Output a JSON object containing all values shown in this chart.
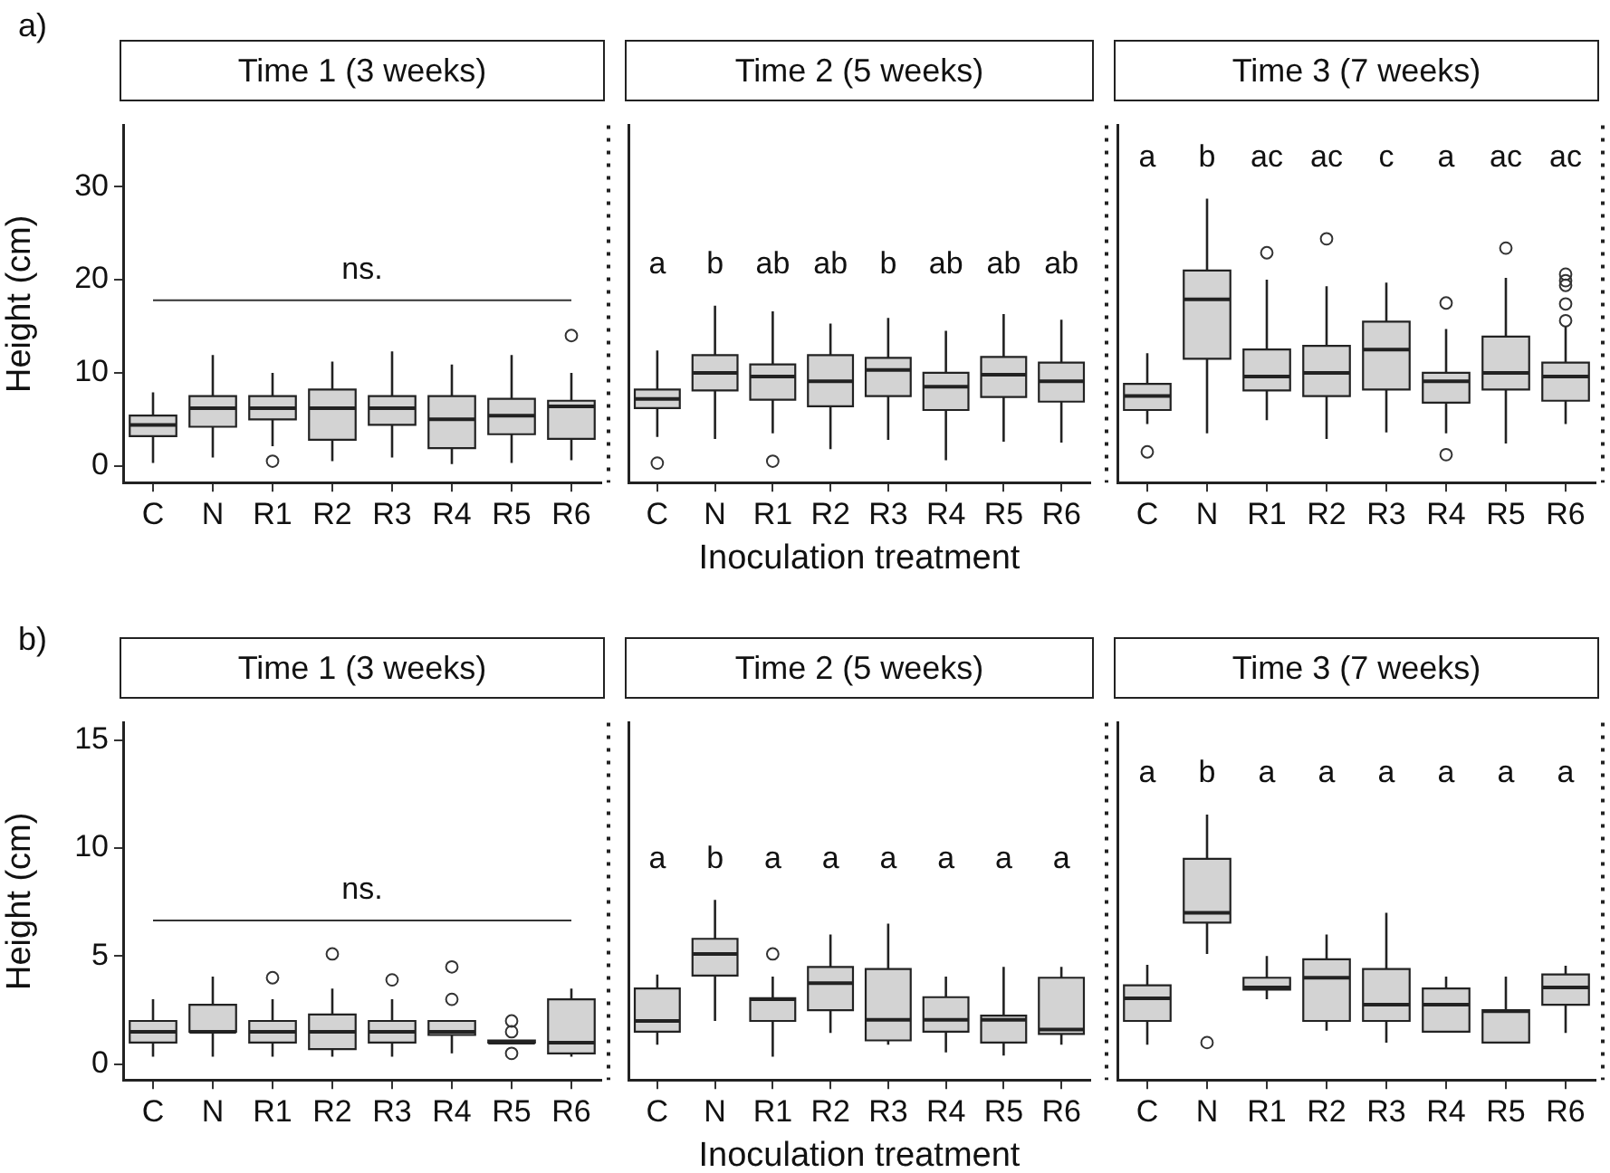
{
  "chart_data": [
    {
      "type": "box",
      "title": "Time 1 (3 weeks)",
      "ylabel": "Height (cm)",
      "categories": [
        "C",
        "N",
        "R1",
        "R2",
        "R3",
        "R4",
        "R5",
        "R6"
      ],
      "ylim": [
        -1.8,
        36.6
      ],
      "yticks": [
        0,
        10,
        20,
        30
      ],
      "marker": "circle",
      "series": [
        {
          "color": "#d3d3d3",
          "boxes": [
            {
              "low": 0.3,
              "q1": 3.2,
              "median": 4.4,
              "q3": 5.4,
              "high": 7.9
            },
            {
              "low": 0.9,
              "q1": 4.2,
              "median": 6.2,
              "q3": 7.5,
              "high": 11.9
            },
            {
              "low": 2.1,
              "q1": 5.0,
              "median": 6.2,
              "q3": 7.5,
              "high": 10,
              "outliers": [
                0.5
              ]
            },
            {
              "low": 0.5,
              "q1": 2.8,
              "median": 6.2,
              "q3": 8.2,
              "high": 11.2
            },
            {
              "low": 0.9,
              "q1": 4.4,
              "median": 6.2,
              "q3": 7.5,
              "high": 12.3
            },
            {
              "low": 0.2,
              "q1": 1.9,
              "median": 5.0,
              "q3": 7.5,
              "high": 10.9
            },
            {
              "low": 0.3,
              "q1": 3.4,
              "median": 5.4,
              "q3": 7.2,
              "high": 11.9
            },
            {
              "low": 0.6,
              "q1": 2.9,
              "median": 6.4,
              "q3": 7.0,
              "high": 10,
              "outliers": [
                14
              ]
            }
          ]
        }
      ],
      "ref_lines": [
        {
          "axis": "y",
          "value": 17.8,
          "label": "ns."
        }
      ],
      "annotations": [
        "a)"
      ]
    },
    {
      "type": "box",
      "title": "Time 2 (5 weeks)",
      "xlabel": "Inoculation treatment",
      "categories": [
        "C",
        "N",
        "R1",
        "R2",
        "R3",
        "R4",
        "R5",
        "R6"
      ],
      "ylim": [
        -1.8,
        36.6
      ],
      "tick_labels": "x",
      "marker": "circle",
      "series": [
        {
          "color": "#d3d3d3",
          "boxes": [
            {
              "low": 3.1,
              "q1": 6.2,
              "median": 7.2,
              "q3": 8.2,
              "high": 12.4,
              "outliers": [
                0.3
              ]
            },
            {
              "low": 2.9,
              "q1": 8.1,
              "median": 10.0,
              "q3": 11.9,
              "high": 17.2
            },
            {
              "low": 3.5,
              "q1": 7.1,
              "median": 9.6,
              "q3": 10.9,
              "high": 16.6,
              "outliers": [
                0.5
              ]
            },
            {
              "low": 1.8,
              "q1": 6.4,
              "median": 9.1,
              "q3": 11.9,
              "high": 15.3
            },
            {
              "low": 2.8,
              "q1": 7.5,
              "median": 10.3,
              "q3": 11.6,
              "high": 15.9
            },
            {
              "low": 0.6,
              "q1": 6.0,
              "median": 8.5,
              "q3": 10.0,
              "high": 14.5
            },
            {
              "low": 2.6,
              "q1": 7.4,
              "median": 9.8,
              "q3": 11.7,
              "high": 16.3
            },
            {
              "low": 2.5,
              "q1": 6.9,
              "median": 9.1,
              "q3": 11.1,
              "high": 15.7
            }
          ]
        }
      ],
      "annotations": [
        "a",
        "b",
        "ab",
        "ab",
        "b",
        "ab",
        "ab",
        "ab"
      ]
    },
    {
      "type": "box",
      "title": "Time 3 (7 weeks)",
      "categories": [
        "C",
        "N",
        "R1",
        "R2",
        "R3",
        "R4",
        "R5",
        "R6"
      ],
      "ylim": [
        -1.8,
        36.6
      ],
      "tick_labels": "x",
      "marker": "circle",
      "series": [
        {
          "color": "#d3d3d3",
          "boxes": [
            {
              "low": 4.5,
              "q1": 6.0,
              "median": 7.5,
              "q3": 8.8,
              "high": 12.1,
              "outliers": [
                1.5
              ]
            },
            {
              "low": 3.5,
              "q1": 11.5,
              "median": 17.9,
              "q3": 21.0,
              "high": 28.7
            },
            {
              "low": 4.9,
              "q1": 8.1,
              "median": 9.6,
              "q3": 12.5,
              "high": 20.0,
              "outliers": [
                22.9
              ]
            },
            {
              "low": 2.9,
              "q1": 7.5,
              "median": 10.0,
              "q3": 12.9,
              "high": 19.3,
              "outliers": [
                24.4
              ]
            },
            {
              "low": 3.6,
              "q1": 8.2,
              "median": 12.5,
              "q3": 15.5,
              "high": 19.7
            },
            {
              "low": 3.5,
              "q1": 6.8,
              "median": 9.1,
              "q3": 10.0,
              "high": 14.7,
              "outliers": [
                1.2,
                17.5
              ]
            },
            {
              "low": 2.4,
              "q1": 8.2,
              "median": 10.0,
              "q3": 13.9,
              "high": 20.2,
              "outliers": [
                23.4
              ]
            },
            {
              "low": 4.5,
              "q1": 7.0,
              "median": 9.6,
              "q3": 11.1,
              "high": 15.0,
              "outliers": [
                15.6,
                17.4,
                19.4,
                19.9,
                20.6
              ]
            }
          ]
        }
      ],
      "annotations": [
        "a",
        "b",
        "ac",
        "ac",
        "c",
        "a",
        "ac",
        "ac"
      ]
    },
    {
      "type": "box",
      "title": "Time 1 (3 weeks)",
      "ylabel": "Height (cm)",
      "categories": [
        "C",
        "N",
        "R1",
        "R2",
        "R3",
        "R4",
        "R5",
        "R6"
      ],
      "ylim": [
        -0.73,
        15.8
      ],
      "yticks": [
        0,
        5,
        10,
        15
      ],
      "marker": "circle",
      "series": [
        {
          "color": "#d3d3d3",
          "boxes": [
            {
              "low": 0.35,
              "q1": 1.0,
              "median": 1.5,
              "q3": 2.0,
              "high": 3.0
            },
            {
              "low": 0.35,
              "q1": 1.5,
              "median": 1.5,
              "q3": 2.75,
              "high": 4.05
            },
            {
              "low": 0.35,
              "q1": 1.0,
              "median": 1.5,
              "q3": 2.0,
              "high": 3.0,
              "outliers": [
                4.0
              ]
            },
            {
              "low": 0.35,
              "q1": 0.7,
              "median": 1.5,
              "q3": 2.3,
              "high": 3.5,
              "outliers": [
                5.1
              ]
            },
            {
              "low": 0.35,
              "q1": 1.0,
              "median": 1.5,
              "q3": 2.0,
              "high": 3.0,
              "outliers": [
                3.9
              ]
            },
            {
              "low": 0.5,
              "q1": 1.35,
              "median": 1.5,
              "q3": 2.0,
              "high": 2.0,
              "outliers": [
                3.0,
                4.5
              ]
            },
            {
              "low": 1.0,
              "q1": 1.0,
              "median": 1.0,
              "q3": 1.1,
              "high": 1.1,
              "outliers": [
                0.5,
                1.5,
                2.0
              ]
            },
            {
              "low": 0.35,
              "q1": 0.5,
              "median": 1.0,
              "q3": 3.0,
              "high": 3.5
            }
          ]
        }
      ],
      "ref_lines": [
        {
          "axis": "y",
          "value": 6.65,
          "label": "ns."
        }
      ],
      "annotations": [
        "b)"
      ]
    },
    {
      "type": "box",
      "title": "Time 2 (5 weeks)",
      "xlabel": "Inoculation treatment",
      "categories": [
        "C",
        "N",
        "R1",
        "R2",
        "R3",
        "R4",
        "R5",
        "R6"
      ],
      "ylim": [
        -0.73,
        15.8
      ],
      "tick_labels": "x",
      "marker": "circle",
      "series": [
        {
          "color": "#d3d3d3",
          "boxes": [
            {
              "low": 0.9,
              "q1": 1.5,
              "median": 2.0,
              "q3": 3.5,
              "high": 4.15
            },
            {
              "low": 2.0,
              "q1": 4.1,
              "median": 5.1,
              "q3": 5.8,
              "high": 7.6
            },
            {
              "low": 0.35,
              "q1": 2.0,
              "median": 3.0,
              "q3": 3.05,
              "high": 4.05,
              "outliers": [
                5.1
              ]
            },
            {
              "low": 1.45,
              "q1": 2.5,
              "median": 3.75,
              "q3": 4.5,
              "high": 6.0
            },
            {
              "low": 0.9,
              "q1": 1.1,
              "median": 2.05,
              "q3": 4.4,
              "high": 6.5
            },
            {
              "low": 0.55,
              "q1": 1.5,
              "median": 2.05,
              "q3": 3.1,
              "high": 4.05
            },
            {
              "low": 0.4,
              "q1": 1.0,
              "median": 2.05,
              "q3": 2.25,
              "high": 4.5
            },
            {
              "low": 0.9,
              "q1": 1.4,
              "median": 1.6,
              "q3": 4.0,
              "high": 4.5
            }
          ]
        }
      ],
      "annotations": [
        "a",
        "b",
        "a",
        "a",
        "a",
        "a",
        "a",
        "a"
      ]
    },
    {
      "type": "box",
      "title": "Time 3 (7 weeks)",
      "categories": [
        "C",
        "N",
        "R1",
        "R2",
        "R3",
        "R4",
        "R5",
        "R6"
      ],
      "ylim": [
        -0.73,
        15.8
      ],
      "tick_labels": "x",
      "marker": "circle",
      "series": [
        {
          "color": "#d3d3d3",
          "boxes": [
            {
              "low": 0.9,
              "q1": 2.0,
              "median": 3.05,
              "q3": 3.65,
              "high": 4.6
            },
            {
              "low": 5.1,
              "q1": 6.55,
              "median": 7.0,
              "q3": 9.5,
              "high": 11.55,
              "outliers": [
                1.0
              ]
            },
            {
              "low": 3.0,
              "q1": 3.45,
              "median": 3.55,
              "q3": 4.0,
              "high": 5.0
            },
            {
              "low": 1.55,
              "q1": 2.0,
              "median": 4.0,
              "q3": 4.85,
              "high": 6.0
            },
            {
              "low": 1.0,
              "q1": 2.0,
              "median": 2.75,
              "q3": 4.4,
              "high": 7.0
            },
            {
              "low": 1.5,
              "q1": 1.5,
              "median": 2.75,
              "q3": 3.5,
              "high": 4.05
            },
            {
              "low": 1.0,
              "q1": 1.0,
              "median": 2.45,
              "q3": 2.5,
              "high": 4.05
            },
            {
              "low": 1.45,
              "q1": 2.75,
              "median": 3.55,
              "q3": 4.15,
              "high": 4.55
            }
          ]
        }
      ],
      "annotations": [
        "a",
        "b",
        "a",
        "a",
        "a",
        "a",
        "a",
        "a"
      ]
    }
  ]
}
